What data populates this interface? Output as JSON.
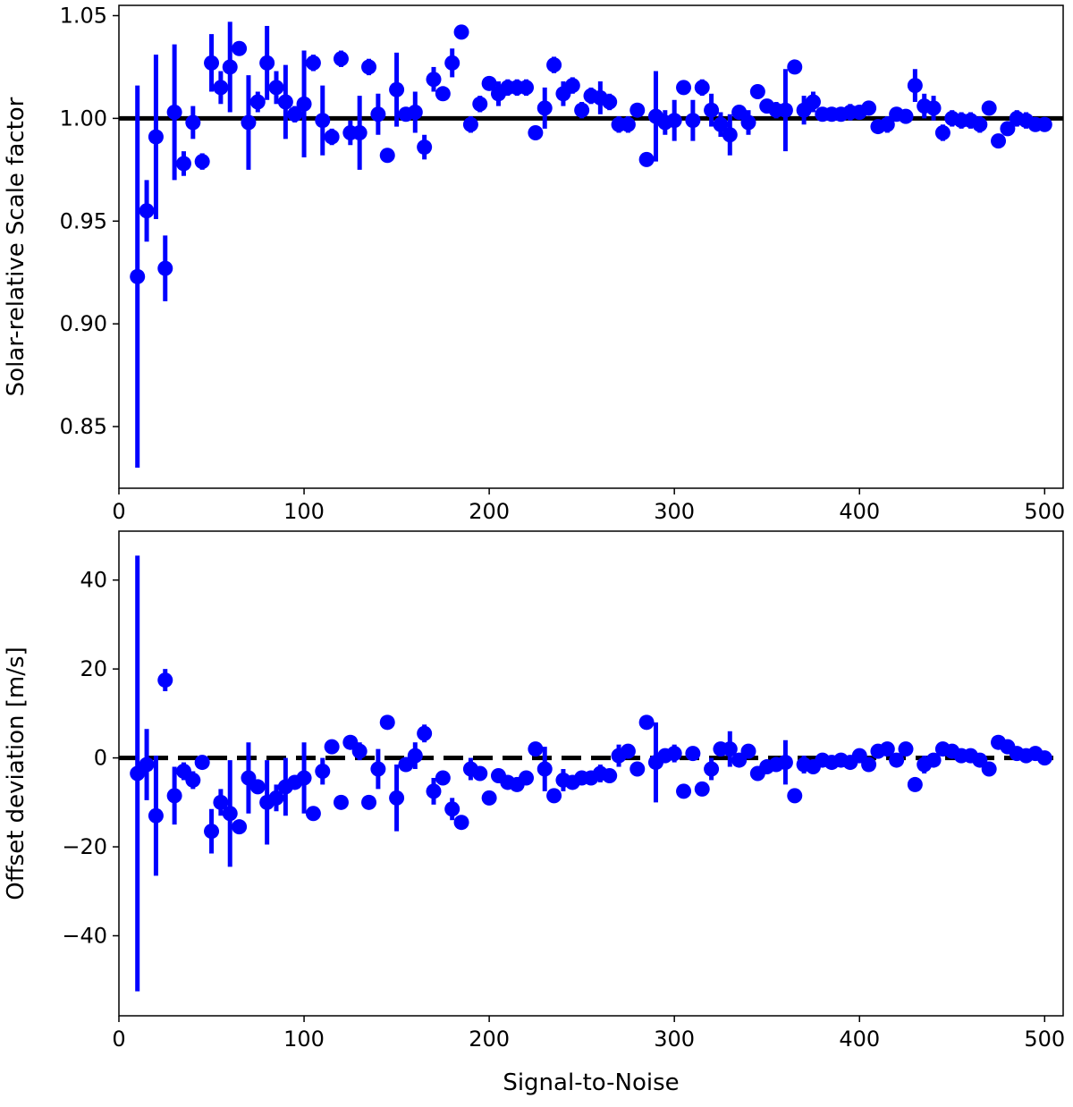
{
  "chart_data": [
    {
      "type": "scatter",
      "title": "",
      "xlabel": "",
      "ylabel": "Solar-relative Scale factor",
      "xlim": [
        0,
        510
      ],
      "ylim": [
        0.82,
        1.055
      ],
      "x_ticks": [
        0,
        100,
        200,
        300,
        400,
        500
      ],
      "x_tick_labels": [
        "0",
        "100",
        "200",
        "300",
        "400",
        "500"
      ],
      "y_ticks": [
        0.85,
        0.9,
        0.95,
        1.0,
        1.05
      ],
      "y_tick_labels": [
        "0.85",
        "0.90",
        "0.95",
        "1.00",
        "1.05"
      ],
      "reference_line": {
        "y": 1.0,
        "style": "solid",
        "color": "#000000"
      },
      "marker_color": "#0000ff",
      "grid": false,
      "series": [
        {
          "x": [
            10,
            15,
            20,
            25,
            30,
            35,
            40,
            45,
            50,
            55,
            60,
            65,
            70,
            75,
            80,
            85,
            90,
            95,
            100,
            105,
            110,
            115,
            120,
            125,
            130,
            135,
            140,
            145,
            150,
            155,
            160,
            165,
            170,
            175,
            180,
            185,
            190,
            195,
            200,
            205,
            210,
            215,
            220,
            225,
            230,
            235,
            240,
            245,
            250,
            255,
            260,
            265,
            270,
            275,
            280,
            285,
            290,
            295,
            300,
            305,
            310,
            315,
            320,
            325,
            330,
            335,
            340,
            345,
            350,
            355,
            360,
            365,
            370,
            375,
            380,
            385,
            390,
            395,
            400,
            405,
            410,
            415,
            420,
            425,
            430,
            435,
            440,
            445,
            450,
            455,
            460,
            465,
            470,
            475,
            480,
            485,
            490,
            495,
            500
          ],
          "y": [
            0.923,
            0.955,
            0.991,
            0.927,
            1.003,
            0.978,
            0.998,
            0.979,
            1.027,
            1.015,
            1.025,
            1.034,
            0.998,
            1.008,
            1.027,
            1.015,
            1.008,
            1.002,
            1.007,
            1.027,
            0.999,
            0.991,
            1.029,
            0.993,
            0.993,
            1.025,
            1.002,
            0.982,
            1.014,
            1.002,
            1.003,
            0.986,
            1.019,
            1.012,
            1.027,
            1.042,
            0.997,
            1.007,
            1.017,
            1.012,
            1.015,
            1.015,
            1.015,
            0.993,
            1.005,
            1.026,
            1.012,
            1.016,
            1.004,
            1.011,
            1.01,
            1.008,
            0.997,
            0.997,
            1.004,
            0.98,
            1.001,
            0.998,
            0.999,
            1.015,
            0.999,
            1.015,
            1.004,
            0.997,
            0.992,
            1.003,
            0.998,
            1.013,
            1.006,
            1.004,
            1.004,
            1.025,
            1.004,
            1.008,
            1.002,
            1.002,
            1.002,
            1.003,
            1.003,
            1.005,
            0.996,
            0.997,
            1.002,
            1.001,
            1.016,
            1.006,
            1.005,
            0.993,
            1.0,
            0.999,
            0.999,
            0.997,
            1.005,
            0.989,
            0.995,
            1.0,
            0.999,
            0.997,
            0.997
          ],
          "yerr": [
            0.093,
            0.015,
            0.04,
            0.016,
            0.033,
            0.006,
            0.008,
            0.004,
            0.014,
            0.008,
            0.022,
            0.002,
            0.023,
            0.005,
            0.018,
            0.008,
            0.018,
            0.004,
            0.026,
            0.004,
            0.017,
            0.004,
            0.004,
            0.006,
            0.018,
            0.004,
            0.01,
            0.003,
            0.018,
            0.003,
            0.01,
            0.006,
            0.006,
            0.003,
            0.007,
            0.003,
            0.004,
            0.004,
            0.003,
            0.006,
            0.004,
            0.004,
            0.004,
            0.003,
            0.01,
            0.004,
            0.006,
            0.004,
            0.004,
            0.004,
            0.008,
            0.004,
            0.004,
            0.004,
            0.003,
            0.003,
            0.022,
            0.006,
            0.01,
            0.003,
            0.01,
            0.004,
            0.008,
            0.006,
            0.01,
            0.003,
            0.006,
            0.003,
            0.003,
            0.004,
            0.02,
            0.003,
            0.007,
            0.005,
            0.003,
            0.003,
            0.003,
            0.004,
            0.003,
            0.003,
            0.003,
            0.004,
            0.003,
            0.003,
            0.008,
            0.006,
            0.006,
            0.004,
            0.004,
            0.004,
            0.004,
            0.004,
            0.003,
            0.003,
            0.003,
            0.004,
            0.004,
            0.003,
            0.003
          ]
        }
      ]
    },
    {
      "type": "scatter",
      "title": "",
      "xlabel": "Signal-to-Noise",
      "ylabel": "Offset deviation [m/s]",
      "xlim": [
        0,
        510
      ],
      "ylim": [
        -58,
        51
      ],
      "x_ticks": [
        0,
        100,
        200,
        300,
        400,
        500
      ],
      "x_tick_labels": [
        "0",
        "100",
        "200",
        "300",
        "400",
        "500"
      ],
      "y_ticks": [
        -40,
        -20,
        0,
        20,
        40
      ],
      "y_tick_labels": [
        "−40",
        "−20",
        "0",
        "20",
        "40"
      ],
      "reference_line": {
        "y": 0,
        "style": "dashed",
        "color": "#000000"
      },
      "marker_color": "#0000ff",
      "grid": false,
      "series": [
        {
          "x": [
            10,
            15,
            20,
            25,
            30,
            35,
            40,
            45,
            50,
            55,
            60,
            65,
            70,
            75,
            80,
            85,
            90,
            95,
            100,
            105,
            110,
            115,
            120,
            125,
            130,
            135,
            140,
            145,
            150,
            155,
            160,
            165,
            170,
            175,
            180,
            185,
            190,
            195,
            200,
            205,
            210,
            215,
            220,
            225,
            230,
            235,
            240,
            245,
            250,
            255,
            260,
            265,
            270,
            275,
            280,
            285,
            290,
            295,
            300,
            305,
            310,
            315,
            320,
            325,
            330,
            335,
            340,
            345,
            350,
            355,
            360,
            365,
            370,
            375,
            380,
            385,
            390,
            395,
            400,
            405,
            410,
            415,
            420,
            425,
            430,
            435,
            440,
            445,
            450,
            455,
            460,
            465,
            470,
            475,
            480,
            485,
            490,
            495,
            500
          ],
          "y": [
            -3.5,
            -1.5,
            -13.0,
            17.5,
            -8.5,
            -3.0,
            -5.0,
            -1.0,
            -16.5,
            -10.0,
            -12.5,
            -15.5,
            -4.5,
            -6.5,
            -10.0,
            -9.0,
            -6.5,
            -5.5,
            -4.5,
            -12.5,
            -3.0,
            2.5,
            -10.0,
            3.5,
            1.5,
            -10.0,
            -2.5,
            8.0,
            -9.0,
            -1.5,
            0.5,
            5.5,
            -7.5,
            -4.5,
            -11.5,
            -14.5,
            -2.5,
            -3.5,
            -9.0,
            -4.0,
            -5.5,
            -6.0,
            -4.5,
            2.0,
            -2.5,
            -8.5,
            -5.0,
            -5.5,
            -4.5,
            -4.5,
            -3.5,
            -4.0,
            0.5,
            1.5,
            -2.5,
            8.0,
            -1.0,
            0.5,
            1.0,
            -7.5,
            1.0,
            -7.0,
            -2.5,
            2.0,
            2.0,
            -0.5,
            1.5,
            -3.5,
            -2.0,
            -1.5,
            -1.0,
            -8.5,
            -1.5,
            -2.0,
            -0.5,
            -1.0,
            -0.5,
            -1.0,
            0.5,
            -1.5,
            1.5,
            2.0,
            -0.5,
            2.0,
            -6.0,
            -1.5,
            -0.5,
            2.0,
            1.5,
            0.5,
            0.5,
            -0.5,
            -2.5,
            3.5,
            2.5,
            1.0,
            0.5,
            1.0,
            0.0
          ],
          "yerr": [
            49.0,
            8.0,
            13.5,
            2.5,
            6.5,
            2.0,
            2.0,
            1.0,
            5.0,
            3.0,
            12.0,
            1.0,
            8.0,
            1.5,
            9.5,
            3.0,
            6.5,
            1.5,
            8.0,
            1.0,
            3.0,
            1.0,
            1.0,
            1.0,
            2.0,
            1.0,
            4.5,
            1.0,
            7.5,
            1.0,
            3.0,
            2.0,
            3.0,
            1.5,
            2.5,
            1.0,
            2.5,
            1.5,
            1.0,
            1.5,
            1.0,
            1.0,
            1.0,
            1.0,
            5.0,
            1.0,
            2.5,
            1.0,
            1.5,
            1.0,
            2.0,
            1.0,
            2.5,
            1.0,
            1.0,
            1.0,
            9.0,
            1.5,
            2.0,
            1.0,
            1.5,
            1.0,
            2.5,
            1.5,
            4.0,
            1.5,
            1.0,
            1.0,
            1.0,
            1.5,
            5.0,
            1.0,
            2.0,
            1.0,
            1.0,
            1.0,
            1.0,
            1.0,
            1.5,
            1.5,
            1.0,
            1.0,
            1.0,
            1.0,
            1.0,
            2.0,
            1.5,
            1.0,
            1.5,
            1.0,
            1.0,
            1.5,
            1.0,
            1.0,
            1.0,
            1.0,
            1.5,
            1.5,
            1.0
          ]
        }
      ]
    }
  ]
}
